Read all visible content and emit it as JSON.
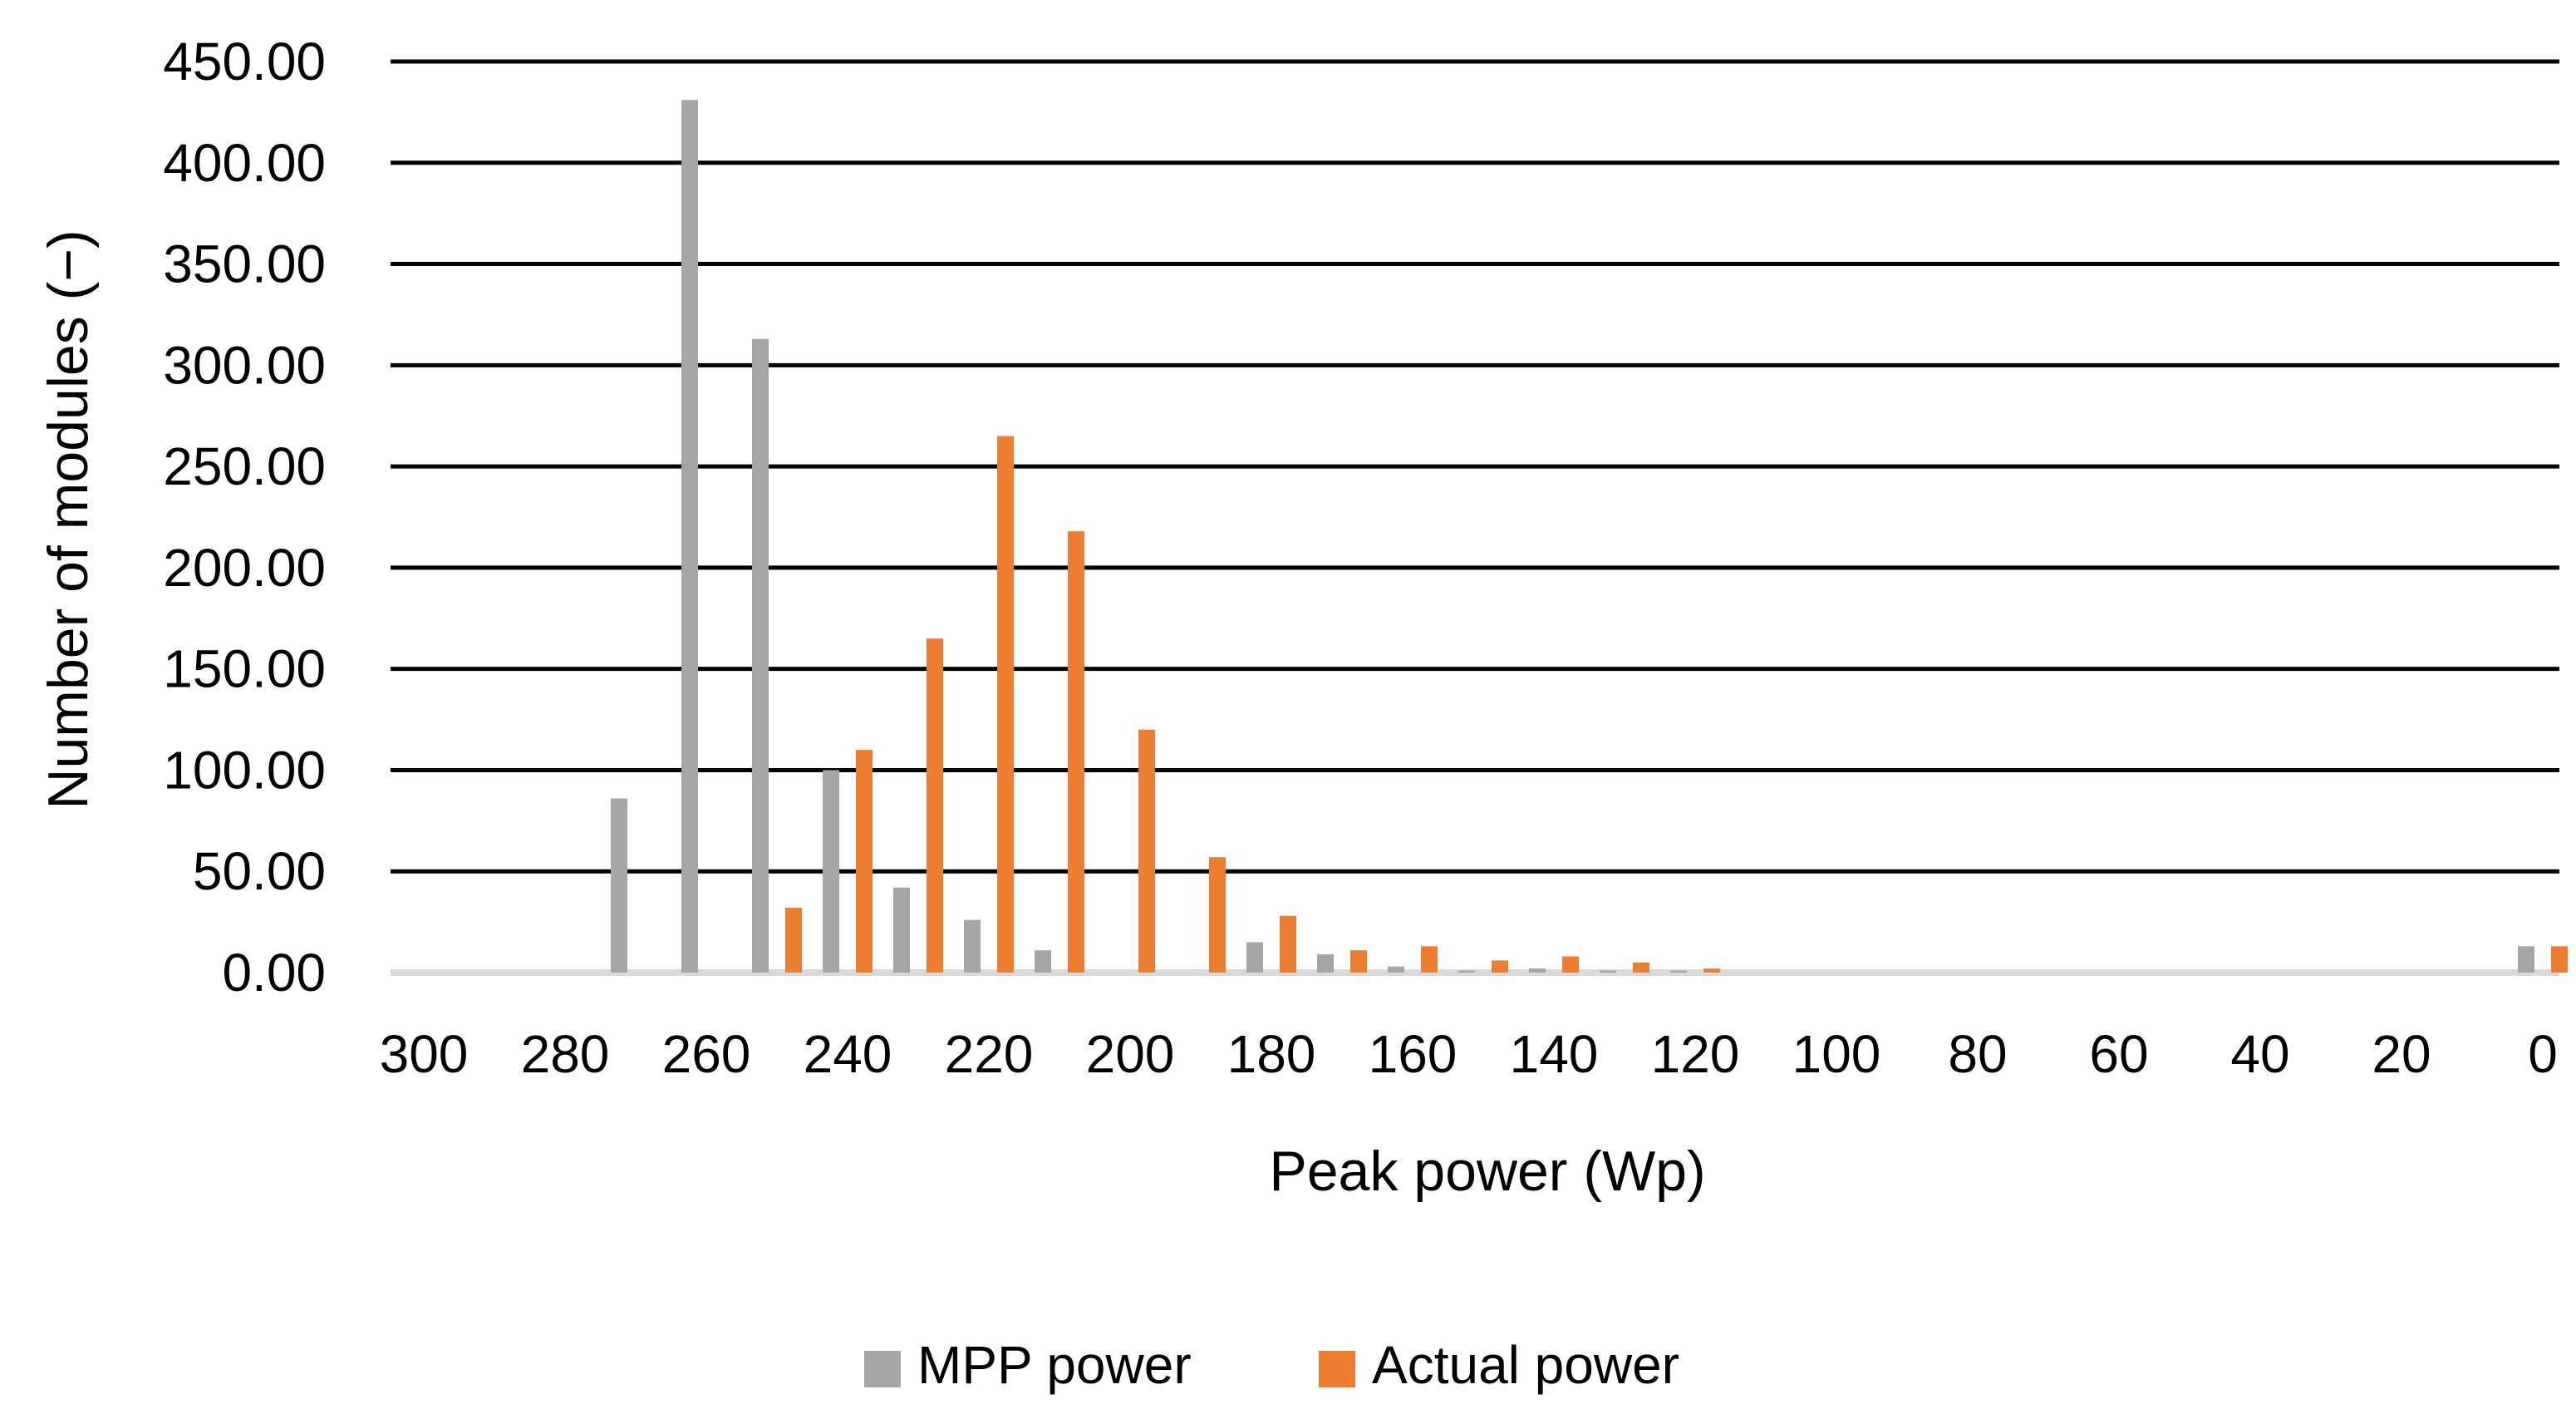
{
  "chart_data": {
    "type": "bar",
    "xlabel": "Peak power (Wp)",
    "ylabel": "Number of modules (−)",
    "title": "",
    "ylim": [
      0,
      450
    ],
    "y_ticks": [
      "0.00",
      "50.00",
      "100.00",
      "150.00",
      "200.00",
      "250.00",
      "300.00",
      "350.00",
      "400.00",
      "450.00"
    ],
    "x_ticks": [
      "300",
      "280",
      "260",
      "240",
      "220",
      "200",
      "180",
      "160",
      "140",
      "120",
      "100",
      "80",
      "60",
      "40",
      "20",
      "0"
    ],
    "x_range": [
      300,
      0
    ],
    "grid": true,
    "legend_position": "bottom-center",
    "categories": [
      270,
      260,
      250,
      240,
      230,
      220,
      210,
      200,
      190,
      180,
      170,
      160,
      150,
      140,
      130,
      120,
      0
    ],
    "series": [
      {
        "name": "MPP power",
        "color": "#a5a5a5",
        "values": [
          86,
          431,
          313,
          100,
          42,
          26,
          11,
          0,
          0,
          15,
          9,
          3,
          1,
          2,
          1,
          1,
          13
        ]
      },
      {
        "name": "Actual power",
        "color": "#ed7d31",
        "values": [
          0,
          0,
          32,
          110,
          165,
          265,
          218,
          120,
          57,
          28,
          11,
          13,
          6,
          8,
          5,
          2,
          13
        ]
      }
    ]
  }
}
